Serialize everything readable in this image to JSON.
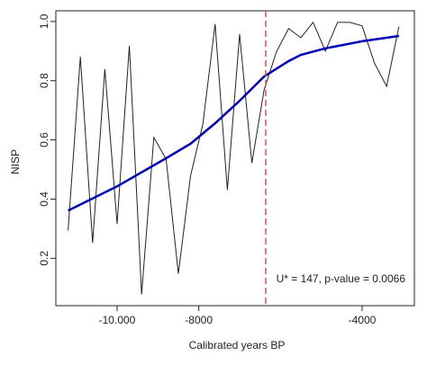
{
  "chart_data": {
    "type": "line",
    "xlabel": "Calibrated years BP",
    "ylabel": "NISP",
    "annotation": "U* = 147, p-value = 0.0066",
    "xlim": [
      -11500,
      -2720
    ],
    "ylim": [
      0.04,
      1.036
    ],
    "xticks": [
      {
        "value": -10000,
        "label": "-10.000"
      },
      -8000,
      -4000
    ],
    "yticks": [
      0.2,
      0.4,
      0.6,
      0.8,
      {
        "value": 1,
        "label": "1.0"
      }
    ],
    "vline": {
      "x": -6360,
      "color": "#d9534f"
    },
    "series": [
      {
        "color": "#222222",
        "x": [
          -11200,
          -10900,
          -10600,
          -10300,
          -10000,
          -9700,
          -9400,
          -9100,
          -8800,
          -8500,
          -8200,
          -7900,
          -7600,
          -7300,
          -7000,
          -6700,
          -6400,
          -6100,
          -5800,
          -5500,
          -5200,
          -4900,
          -4600,
          -4300,
          -4000,
          -3700,
          -3400,
          -3100
        ],
        "values": [
          0.294,
          0.881,
          0.252,
          0.839,
          0.316,
          0.918,
          0.078,
          0.608,
          0.535,
          0.148,
          0.48,
          0.653,
          0.991,
          0.431,
          0.957,
          0.522,
          0.769,
          0.897,
          0.976,
          0.945,
          0.997,
          0.9,
          0.997,
          0.997,
          0.985,
          0.86,
          0.781,
          0.982
        ]
      },
      {
        "color": "#0000bb",
        "x": [
          -11200,
          -10000,
          -8800,
          -8200,
          -7600,
          -7000,
          -6400,
          -5800,
          -5500,
          -4900,
          -4000,
          -3100
        ],
        "values": [
          0.361,
          0.443,
          0.538,
          0.587,
          0.656,
          0.732,
          0.814,
          0.866,
          0.887,
          0.909,
          0.933,
          0.951
        ]
      }
    ]
  }
}
